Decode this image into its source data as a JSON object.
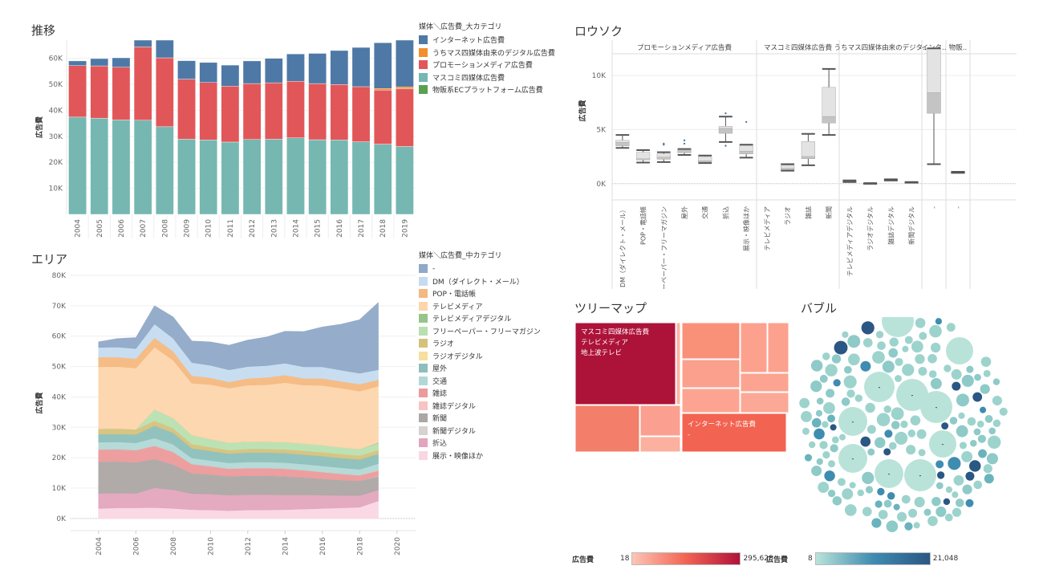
{
  "panels": {
    "trend_title": "推移",
    "area_title": "エリア",
    "candle_title": "ロウソク",
    "treemap_title": "ツリーマップ",
    "bubble_title": "バブル"
  },
  "legend_major": {
    "title": "媒体＼広告費_大カテゴリ",
    "items": [
      {
        "label": "インターネット広告費",
        "color": "#4e79a7"
      },
      {
        "label": "うちマス四媒体由来のデジタル広告費",
        "color": "#f28e2b"
      },
      {
        "label": "プロモーションメディア広告費",
        "color": "#e15759"
      },
      {
        "label": "マスコミ四媒体広告費",
        "color": "#76b7b2"
      },
      {
        "label": "物販系ECプラットフォーム広告費",
        "color": "#59a14f"
      }
    ]
  },
  "legend_mid": {
    "title": "媒体＼広告費_中カテゴリ",
    "items": [
      {
        "label": "-",
        "color": "#8fa9c8"
      },
      {
        "label": "DM（ダイレクト・メール）",
        "color": "#c5dcef"
      },
      {
        "label": "POP・電話帳",
        "color": "#f5b880"
      },
      {
        "label": "テレビメディア",
        "color": "#fdd5ab"
      },
      {
        "label": "テレビメディアデジタル",
        "color": "#95c58a"
      },
      {
        "label": "フリーペーパー・フリーマガジン",
        "color": "#b8e0b0"
      },
      {
        "label": "ラジオ",
        "color": "#d4c27c"
      },
      {
        "label": "ラジオデジタル",
        "color": "#f7e09e"
      },
      {
        "label": "屋外",
        "color": "#8cbfbb"
      },
      {
        "label": "交通",
        "color": "#b2d8d5"
      },
      {
        "label": "雑誌",
        "color": "#ec9a9b"
      },
      {
        "label": "雑誌デジタル",
        "color": "#fac3c3"
      },
      {
        "label": "新聞",
        "color": "#aca6a4"
      },
      {
        "label": "新聞デジタル",
        "color": "#d7d2cf"
      },
      {
        "label": "折込",
        "color": "#e2a5bd"
      },
      {
        "label": "展示・映像ほか",
        "color": "#fad6e3"
      }
    ]
  },
  "chart_data": [
    {
      "id": "trend",
      "type": "bar",
      "stacked": true,
      "title": "推移",
      "xlabel": "",
      "ylabel": "広告費",
      "ylim": [
        0,
        67000
      ],
      "yticks": [
        10000,
        20000,
        30000,
        40000,
        50000,
        60000
      ],
      "ytick_labels": [
        "10K",
        "20K",
        "30K",
        "40K",
        "50K",
        "60K"
      ],
      "categories": [
        "2004",
        "2005",
        "2006",
        "2007",
        "2008",
        "2009",
        "2010",
        "2011",
        "2012",
        "2013",
        "2014",
        "2015",
        "2016",
        "2017",
        "2018",
        "2019"
      ],
      "series": [
        {
          "name": "マスコミ四媒体広告費",
          "color": "#76b7b2",
          "values": [
            37400,
            37000,
            36300,
            36200,
            33700,
            28900,
            28600,
            27800,
            28800,
            28900,
            29400,
            28700,
            28600,
            27900,
            27000,
            26100
          ]
        },
        {
          "name": "プロモーションメディア広告費",
          "color": "#e15759",
          "values": [
            19800,
            20100,
            20300,
            28200,
            26500,
            23100,
            22100,
            21500,
            21500,
            21700,
            21800,
            21600,
            21300,
            21200,
            20800,
            22200
          ]
        },
        {
          "name": "うちマス四媒体由来のデジタル広告費",
          "color": "#f28e2b",
          "values": [
            0,
            0,
            0,
            0,
            0,
            0,
            0,
            0,
            0,
            0,
            0,
            0,
            0,
            0,
            600,
            700
          ]
        },
        {
          "name": "物販系ECプラットフォーム広告費",
          "color": "#59a14f",
          "values": [
            0,
            0,
            0,
            0,
            0,
            0,
            0,
            0,
            0,
            0,
            0,
            0,
            0,
            0,
            0,
            0
          ]
        },
        {
          "name": "インターネット広告費",
          "color": "#4e79a7",
          "values": [
            1800,
            2800,
            3600,
            6000,
            7000,
            7100,
            7700,
            8100,
            8700,
            9400,
            10500,
            11600,
            13100,
            15100,
            17600,
            21000
          ]
        }
      ],
      "legend": "right-top"
    },
    {
      "id": "area",
      "type": "area",
      "stacked": true,
      "title": "エリア",
      "xlabel": "",
      "ylabel": "広告費",
      "ylim": [
        -4000,
        80000
      ],
      "xlim": [
        2002.5,
        2021
      ],
      "yticks": [
        0,
        10000,
        20000,
        30000,
        40000,
        50000,
        60000,
        70000,
        80000
      ],
      "ytick_labels": [
        "0K",
        "10K",
        "20K",
        "30K",
        "40K",
        "50K",
        "60K",
        "70K",
        "80K"
      ],
      "xticks": [
        2004,
        2006,
        2008,
        2010,
        2012,
        2014,
        2016,
        2018,
        2020
      ],
      "x": [
        2004,
        2005,
        2006,
        2007,
        2008,
        2009,
        2010,
        2011,
        2012,
        2013,
        2014,
        2015,
        2016,
        2017,
        2018,
        2019
      ],
      "series": [
        {
          "name": "展示・映像ほか",
          "color": "#fad6e3",
          "values": [
            3300,
            3500,
            3500,
            3600,
            3300,
            2900,
            2800,
            2600,
            2800,
            2800,
            2900,
            3100,
            3300,
            3500,
            3700,
            5800
          ]
        },
        {
          "name": "折込",
          "color": "#e2a5bd",
          "values": [
            5000,
            4900,
            4800,
            6500,
            6200,
            5300,
            5300,
            5100,
            5100,
            5100,
            4900,
            4700,
            4400,
            4100,
            3900,
            3600
          ]
        },
        {
          "name": "新聞",
          "color": "#aca6a4",
          "values": [
            10400,
            10400,
            10200,
            9500,
            8300,
            6700,
            6400,
            6200,
            6200,
            6200,
            6100,
            5700,
            5400,
            5100,
            4800,
            4500
          ]
        },
        {
          "name": "新聞デジタル",
          "color": "#d7d2cf",
          "values": [
            0,
            0,
            0,
            0,
            0,
            0,
            0,
            0,
            0,
            0,
            0,
            0,
            0,
            0,
            0,
            150
          ]
        },
        {
          "name": "雑誌",
          "color": "#ec9a9b",
          "values": [
            4000,
            4000,
            4000,
            4300,
            4100,
            3000,
            2700,
            2500,
            2500,
            2500,
            2500,
            2400,
            2200,
            2000,
            1800,
            1700
          ]
        },
        {
          "name": "雑誌デジタル",
          "color": "#fac3c3",
          "values": [
            0,
            0,
            0,
            0,
            0,
            0,
            0,
            0,
            0,
            0,
            0,
            0,
            0,
            0,
            0,
            200
          ]
        },
        {
          "name": "交通",
          "color": "#b2d8d5",
          "values": [
            2400,
            2400,
            2400,
            2600,
            2500,
            2000,
            1900,
            1900,
            2000,
            2000,
            2000,
            2000,
            2000,
            2000,
            2000,
            2100
          ]
        },
        {
          "name": "屋外",
          "color": "#8cbfbb",
          "values": [
            2600,
            2600,
            2700,
            4000,
            3800,
            3200,
            3100,
            3000,
            3100,
            3100,
            3100,
            3100,
            3200,
            3200,
            3200,
            3200
          ]
        },
        {
          "name": "ラジオ",
          "color": "#d4c27c",
          "values": [
            1800,
            1800,
            1700,
            1700,
            1500,
            1400,
            1300,
            1200,
            1200,
            1200,
            1300,
            1300,
            1300,
            1300,
            1300,
            1300
          ]
        },
        {
          "name": "ラジオデジタル",
          "color": "#f7e09e",
          "values": [
            0,
            0,
            0,
            0,
            0,
            0,
            0,
            0,
            0,
            0,
            0,
            0,
            0,
            0,
            0,
            100
          ]
        },
        {
          "name": "フリーペーパー・フリーマガジン",
          "color": "#b8e0b0",
          "values": [
            0,
            0,
            0,
            3700,
            3300,
            2900,
            2600,
            2400,
            2400,
            2300,
            2300,
            2300,
            2300,
            2200,
            2100,
            2100
          ]
        },
        {
          "name": "テレビメディアデジタル",
          "color": "#95c58a",
          "values": [
            0,
            0,
            0,
            0,
            0,
            0,
            0,
            0,
            0,
            0,
            0,
            0,
            0,
            0,
            0,
            200
          ]
        },
        {
          "name": "テレビメディア",
          "color": "#fdd5ab",
          "values": [
            20400,
            20400,
            20200,
            20500,
            19100,
            17100,
            18000,
            18000,
            18600,
            18800,
            19600,
            19300,
            19700,
            19500,
            19100,
            18600
          ]
        },
        {
          "name": "POP・電話帳",
          "color": "#f5b880",
          "values": [
            3200,
            3100,
            3100,
            3100,
            2900,
            2500,
            2200,
            2000,
            2200,
            2400,
            2500,
            2200,
            2300,
            2200,
            2300,
            2100
          ]
        },
        {
          "name": "DM（ダイレクト・メール）",
          "color": "#c5dcef",
          "values": [
            3200,
            3300,
            3300,
            4500,
            4300,
            4300,
            4100,
            4000,
            3900,
            3900,
            3900,
            3800,
            3800,
            3700,
            3600,
            3300
          ]
        },
        {
          "name": "-",
          "color": "#8fa9c8",
          "values": [
            1800,
            2800,
            3600,
            6000,
            7000,
            7100,
            7700,
            8100,
            8700,
            9400,
            10500,
            11600,
            13100,
            15100,
            17600,
            22100
          ]
        }
      ]
    },
    {
      "id": "candle",
      "type": "boxplot",
      "title": "ロウソク",
      "ylabel": "広告費",
      "ylim": [
        -1500,
        12000
      ],
      "yticks": [
        0,
        5000,
        10000
      ],
      "ytick_labels": [
        "0K",
        "5K",
        "10K"
      ],
      "groups": [
        {
          "name": "プロモーションメディア広告費",
          "boxes": [
            {
              "label": "DM（ダイレクト・メール）",
              "min": 3300,
              "q1": 3500,
              "median": 3800,
              "q3": 4000,
              "max": 4500,
              "outliers": []
            },
            {
              "label": "POP・電話帳",
              "min": 1950,
              "q1": 2200,
              "median": 2300,
              "q3": 2900,
              "max": 3100,
              "outliers": []
            },
            {
              "label": "フリーペーパー・フリーマガジン",
              "min": 2000,
              "q1": 2250,
              "median": 2450,
              "q3": 2750,
              "max": 2900,
              "outliers": [
                3600,
                3700
              ]
            },
            {
              "label": "屋外",
              "min": 2650,
              "q1": 2850,
              "median": 3050,
              "q3": 3150,
              "max": 3200,
              "outliers": [
                3700,
                4000
              ]
            },
            {
              "label": "交通",
              "min": 1900,
              "q1": 2000,
              "median": 2100,
              "q3": 2500,
              "max": 2600,
              "outliers": []
            },
            {
              "label": "折込",
              "min": 3850,
              "q1": 4650,
              "median": 5100,
              "q3": 5300,
              "max": 6200,
              "outliers": [
                3500,
                6500
              ]
            },
            {
              "label": "展示・映像ほか",
              "min": 2400,
              "q1": 2750,
              "median": 3000,
              "q3": 3550,
              "max": 3600,
              "outliers": [
                5700
              ]
            }
          ]
        },
        {
          "name": "マスコミ四媒体広告費",
          "boxes": [
            {
              "label": "テレビメディア",
              "min": 0,
              "q1": 0,
              "median": 0,
              "q3": 0,
              "max": 0,
              "outliers": [],
              "hidden": true
            },
            {
              "label": "ラジオ",
              "min": 1200,
              "q1": 1300,
              "median": 1400,
              "q3": 1700,
              "max": 1800,
              "outliers": []
            },
            {
              "label": "雑誌",
              "min": 1700,
              "q1": 2300,
              "median": 2500,
              "q3": 3900,
              "max": 4600,
              "outliers": []
            },
            {
              "label": "新聞",
              "min": 4500,
              "q1": 5600,
              "median": 6200,
              "q3": 8900,
              "max": 10600,
              "outliers": []
            }
          ]
        },
        {
          "name": "うちマス四媒体由来のデジタ..",
          "boxes": [
            {
              "label": "テレビメディアデジタル",
              "min": 150,
              "q1": 150,
              "median": 250,
              "q3": 300,
              "max": 300,
              "outliers": []
            },
            {
              "label": "ラジオデジタル",
              "min": 0,
              "q1": 0,
              "median": 20,
              "q3": 50,
              "max": 50,
              "outliers": []
            },
            {
              "label": "雑誌デジタル",
              "min": 300,
              "q1": 300,
              "median": 350,
              "q3": 400,
              "max": 400,
              "outliers": []
            },
            {
              "label": "新聞デジタル",
              "min": 100,
              "q1": 100,
              "median": 130,
              "q3": 150,
              "max": 150,
              "outliers": []
            }
          ]
        },
        {
          "name": "インタ..",
          "boxes": [
            {
              "label": "-",
              "min": 1800,
              "q1": 6500,
              "median": 8400,
              "q3": 12500,
              "max": 12500,
              "outliers": []
            }
          ]
        },
        {
          "name": "物販..",
          "boxes": [
            {
              "label": "-",
              "min": 1000,
              "q1": 1000,
              "median": 1050,
              "q3": 1100,
              "max": 1100,
              "outliers": []
            }
          ]
        }
      ]
    },
    {
      "id": "treemap",
      "type": "treemap",
      "title": "ツリーマップ",
      "color_legend": {
        "label": "広告費",
        "min": 18,
        "max": 295628,
        "min_label": "18",
        "max_label": "295,628",
        "from": "#fcc5b6",
        "to": "#b0123b"
      },
      "labeled_cells": [
        {
          "lines": [
            "マスコミ四媒体広告費",
            "テレビメディア",
            "地上波テレビ"
          ]
        },
        {
          "lines": [
            "インターネット広告費",
            "-"
          ]
        }
      ]
    },
    {
      "id": "bubble",
      "type": "bubble",
      "title": "バブル",
      "color_legend": {
        "label": "広告費",
        "min": 8,
        "max": 21048,
        "min_label": "8",
        "max_label": "21,048",
        "from": "#b9e3d9",
        "to": "#2a5783"
      },
      "large_bubble_label": "-"
    }
  ]
}
